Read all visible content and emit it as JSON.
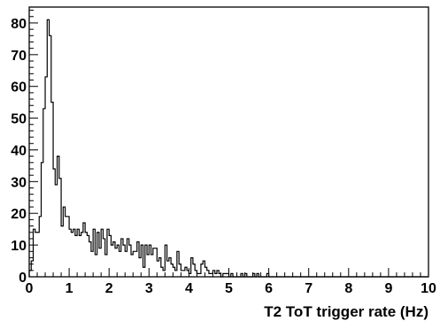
{
  "chart_data": {
    "type": "histogram",
    "title": "",
    "xlabel": "T2 ToT trigger rate (Hz)",
    "ylabel": "",
    "xlim": [
      0,
      10
    ],
    "ylim": [
      0,
      85
    ],
    "grid": false,
    "x_ticks": [
      "0",
      "1",
      "2",
      "3",
      "4",
      "5",
      "6",
      "7",
      "8",
      "9",
      "10"
    ],
    "y_ticks": [
      "0",
      "10",
      "20",
      "30",
      "40",
      "50",
      "60",
      "70",
      "80"
    ],
    "bin_width": 0.05,
    "bin_start": 0.0,
    "counts": [
      2,
      5,
      15,
      14,
      14,
      19,
      36,
      53,
      63,
      81,
      76,
      55,
      34,
      29,
      38,
      31,
      16,
      22,
      19,
      19,
      15,
      14,
      15,
      13,
      15,
      13,
      14,
      17,
      14,
      13,
      11,
      8,
      15,
      7,
      14,
      9,
      15,
      12,
      7,
      15,
      13,
      10,
      11,
      9,
      10,
      8,
      12,
      10,
      8,
      12,
      10,
      7,
      8,
      8,
      11,
      6,
      10,
      3,
      10,
      7,
      10,
      7,
      9,
      9,
      5,
      6,
      3,
      2,
      10,
      5,
      6,
      4,
      3,
      2,
      8,
      4,
      2,
      2,
      3,
      2,
      1,
      6,
      4,
      2,
      1,
      1,
      4,
      5,
      3,
      2,
      1,
      1,
      2,
      1,
      2,
      1,
      0,
      1,
      1,
      1,
      0,
      1,
      0,
      0,
      0,
      0,
      1,
      0,
      1,
      0,
      0,
      0,
      1,
      0,
      1,
      0,
      0,
      0,
      0,
      1,
      0,
      0,
      0,
      0,
      0,
      0,
      0,
      0,
      0,
      0,
      0,
      0,
      0,
      0,
      0,
      0,
      0,
      0,
      0,
      0,
      0,
      0,
      0,
      0,
      0,
      0,
      0,
      0,
      0,
      0,
      0,
      0,
      0,
      0,
      0,
      0,
      0,
      0,
      0,
      0,
      0,
      0,
      0,
      0,
      0,
      0,
      0,
      0,
      0,
      0,
      0,
      0,
      0,
      0,
      0,
      0,
      0,
      0,
      0,
      0,
      0,
      0,
      0,
      0,
      0,
      0,
      0,
      0,
      0,
      0,
      0,
      0,
      0,
      0,
      0,
      0,
      0,
      0,
      0,
      0
    ],
    "colors": {
      "line": "#000000",
      "frame": "#000000",
      "background": "#ffffff"
    }
  }
}
